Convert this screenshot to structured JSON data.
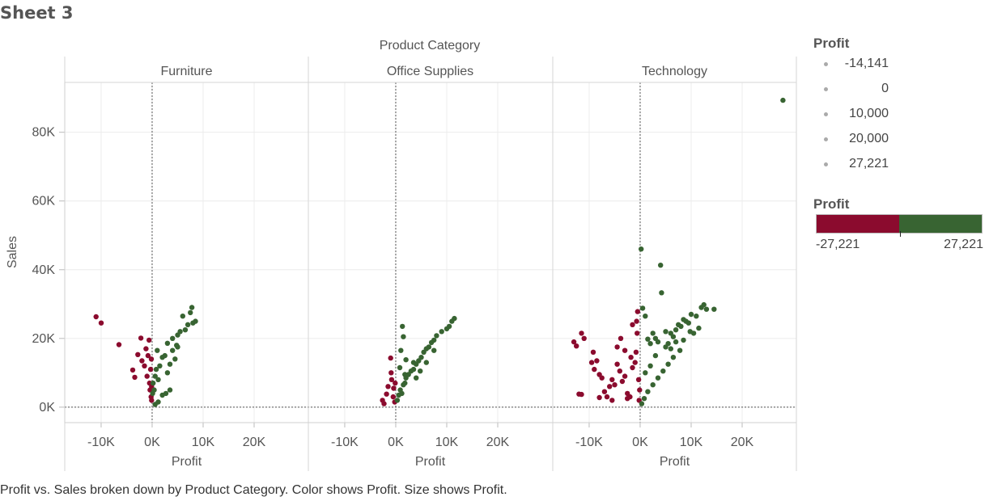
{
  "sheet_title": "Sheet 3",
  "caption": "Profit vs. Sales broken down by Product Category.  Color shows Profit.  Size shows Profit.",
  "legend": {
    "size_title": "Profit",
    "size_items": [
      "-14,141",
      "0",
      "10,000",
      "20,000",
      "27,221"
    ],
    "color_title": "Profit",
    "color_min_label": "-27,221",
    "color_max_label": "27,221",
    "negative_color": "#8b0b2e",
    "positive_color": "#386432"
  },
  "chart_data": {
    "type": "scatter",
    "column_header": "Product Category",
    "panels": [
      "Furniture",
      "Office Supplies",
      "Technology"
    ],
    "xlabel": "Profit",
    "ylabel": "Sales",
    "x_ticks": [
      "-10K",
      "0K",
      "10K",
      "20K"
    ],
    "x_tick_values": [
      -10000,
      0,
      10000,
      20000
    ],
    "y_ticks": [
      "0K",
      "20K",
      "40K",
      "60K",
      "80K"
    ],
    "y_tick_values": [
      0,
      20000,
      40000,
      60000,
      80000
    ],
    "xlim": [
      -16500,
      30000
    ],
    "ylim": [
      -4500,
      94500
    ],
    "reference_lines": "dotted at Profit 0 and Sales 0",
    "color_rule": "red for negative profit, green for positive profit",
    "series": [
      {
        "points": [
          [
            -11000,
            26300
          ],
          [
            -10000,
            24500
          ],
          [
            -6500,
            18200
          ],
          [
            -3800,
            10800
          ],
          [
            -3400,
            8700
          ],
          [
            -2800,
            15300
          ],
          [
            -2200,
            20100
          ],
          [
            -2000,
            13500
          ],
          [
            -1500,
            12000
          ],
          [
            -1200,
            17000
          ],
          [
            -1000,
            9000
          ],
          [
            -800,
            15000
          ],
          [
            -600,
            19500
          ],
          [
            -500,
            7000
          ],
          [
            -400,
            5000
          ],
          [
            -300,
            11000
          ],
          [
            -200,
            3000
          ],
          [
            -150,
            14000
          ],
          [
            -100,
            2000
          ],
          [
            -100,
            6000
          ],
          [
            100,
            4000
          ],
          [
            200,
            7000
          ],
          [
            400,
            5000
          ],
          [
            600,
            9000
          ],
          [
            800,
            11000
          ],
          [
            1000,
            16500
          ],
          [
            1200,
            8000
          ],
          [
            1500,
            12000
          ],
          [
            2000,
            14500
          ],
          [
            2500,
            15000
          ],
          [
            3000,
            10000
          ],
          [
            3500,
            12500
          ],
          [
            4000,
            16500
          ],
          [
            4500,
            14000
          ],
          [
            3000,
            18600
          ],
          [
            4000,
            20000
          ],
          [
            4800,
            18000
          ],
          [
            3500,
            5000
          ],
          [
            2700,
            4000
          ],
          [
            5000,
            17500
          ],
          [
            5500,
            22000
          ],
          [
            6500,
            22500
          ],
          [
            7000,
            24000
          ],
          [
            6000,
            26500
          ],
          [
            7500,
            27500
          ],
          [
            7800,
            29000
          ],
          [
            8500,
            25000
          ],
          [
            8000,
            24500
          ],
          [
            5000,
            21000
          ],
          [
            2000,
            3500
          ],
          [
            1200,
            1500
          ],
          [
            600,
            800
          ]
        ]
      },
      {
        "points": [
          [
            -2600,
            2000
          ],
          [
            -2300,
            1000
          ],
          [
            -1800,
            3800
          ],
          [
            -1500,
            6000
          ],
          [
            -1000,
            14300
          ],
          [
            -900,
            10000
          ],
          [
            -800,
            8000
          ],
          [
            -500,
            3000
          ],
          [
            -400,
            5500
          ],
          [
            -200,
            1500
          ],
          [
            -100,
            7000
          ],
          [
            300,
            2000
          ],
          [
            600,
            3500
          ],
          [
            900,
            5000
          ],
          [
            1200,
            4000
          ],
          [
            1500,
            6500
          ],
          [
            1800,
            7000
          ],
          [
            2000,
            8500
          ],
          [
            2500,
            9500
          ],
          [
            3000,
            10500
          ],
          [
            3500,
            11000
          ],
          [
            4000,
            12500
          ],
          [
            4500,
            13500
          ],
          [
            5000,
            14500
          ],
          [
            5500,
            16000
          ],
          [
            6000,
            17000
          ],
          [
            6500,
            17500
          ],
          [
            7000,
            18800
          ],
          [
            7500,
            19500
          ],
          [
            8000,
            20800
          ],
          [
            9000,
            22000
          ],
          [
            10000,
            22800
          ],
          [
            10500,
            23500
          ],
          [
            11000,
            25000
          ],
          [
            11500,
            25800
          ],
          [
            1000,
            16500
          ],
          [
            1300,
            23500
          ],
          [
            1500,
            20500
          ],
          [
            2000,
            13800
          ],
          [
            3500,
            13000
          ],
          [
            4000,
            8500
          ],
          [
            800,
            11500
          ],
          [
            1800,
            9500
          ],
          [
            4800,
            10500
          ],
          [
            6000,
            13000
          ],
          [
            7500,
            16500
          ]
        ]
      },
      {
        "points": [
          [
            -13000,
            19000
          ],
          [
            -12500,
            17800
          ],
          [
            -11500,
            21500
          ],
          [
            -11000,
            20000
          ],
          [
            -12000,
            3800
          ],
          [
            -11500,
            3700
          ],
          [
            -9000,
            11000
          ],
          [
            -8500,
            13500
          ],
          [
            -8000,
            9500
          ],
          [
            -7500,
            8500
          ],
          [
            -7000,
            4500
          ],
          [
            -6500,
            3000
          ],
          [
            -6000,
            6000
          ],
          [
            -5500,
            8000
          ],
          [
            -5000,
            6500
          ],
          [
            -4500,
            12500
          ],
          [
            -4000,
            10500
          ],
          [
            -3500,
            7500
          ],
          [
            -3000,
            9000
          ],
          [
            -2500,
            4000
          ],
          [
            -2000,
            3000
          ],
          [
            -1800,
            14500
          ],
          [
            -1500,
            11500
          ],
          [
            -1000,
            13000
          ],
          [
            -800,
            16000
          ],
          [
            -600,
            21500
          ],
          [
            -500,
            27800
          ],
          [
            -300,
            8000
          ],
          [
            -200,
            2000
          ],
          [
            -100,
            5000
          ],
          [
            -4500,
            17500
          ],
          [
            -2500,
            2500
          ],
          [
            -5500,
            2000
          ],
          [
            -8000,
            2800
          ],
          [
            -9500,
            13000
          ],
          [
            -3000,
            16500
          ],
          [
            -1500,
            24000
          ],
          [
            -700,
            25000
          ],
          [
            -3800,
            20000
          ],
          [
            -9200,
            16000
          ],
          [
            200,
            46000
          ],
          [
            500,
            28800
          ],
          [
            1000,
            26500
          ],
          [
            1500,
            19800
          ],
          [
            2000,
            18500
          ],
          [
            2500,
            21500
          ],
          [
            3000,
            20000
          ],
          [
            3500,
            19000
          ],
          [
            4000,
            41300
          ],
          [
            4200,
            33300
          ],
          [
            5000,
            22000
          ],
          [
            5500,
            18500
          ],
          [
            6000,
            17000
          ],
          [
            6500,
            20500
          ],
          [
            7000,
            22500
          ],
          [
            7500,
            24000
          ],
          [
            8000,
            23500
          ],
          [
            8500,
            25500
          ],
          [
            9000,
            25000
          ],
          [
            9500,
            24500
          ],
          [
            10000,
            27000
          ],
          [
            10500,
            21500
          ],
          [
            11000,
            26500
          ],
          [
            12000,
            29000
          ],
          [
            12500,
            29800
          ],
          [
            13000,
            28500
          ],
          [
            14500,
            28500
          ],
          [
            11500,
            23000
          ],
          [
            9800,
            22000
          ],
          [
            8500,
            19500
          ],
          [
            7800,
            16500
          ],
          [
            6500,
            14500
          ],
          [
            5500,
            12500
          ],
          [
            4500,
            10500
          ],
          [
            3500,
            8500
          ],
          [
            2500,
            6500
          ],
          [
            1500,
            4500
          ],
          [
            800,
            2500
          ],
          [
            300,
            1000
          ],
          [
            6000,
            21500
          ],
          [
            3000,
            15000
          ],
          [
            2000,
            12000
          ],
          [
            1000,
            10000
          ],
          [
            5000,
            17500
          ],
          [
            7000,
            19000
          ],
          [
            28000,
            89300
          ]
        ]
      }
    ]
  }
}
